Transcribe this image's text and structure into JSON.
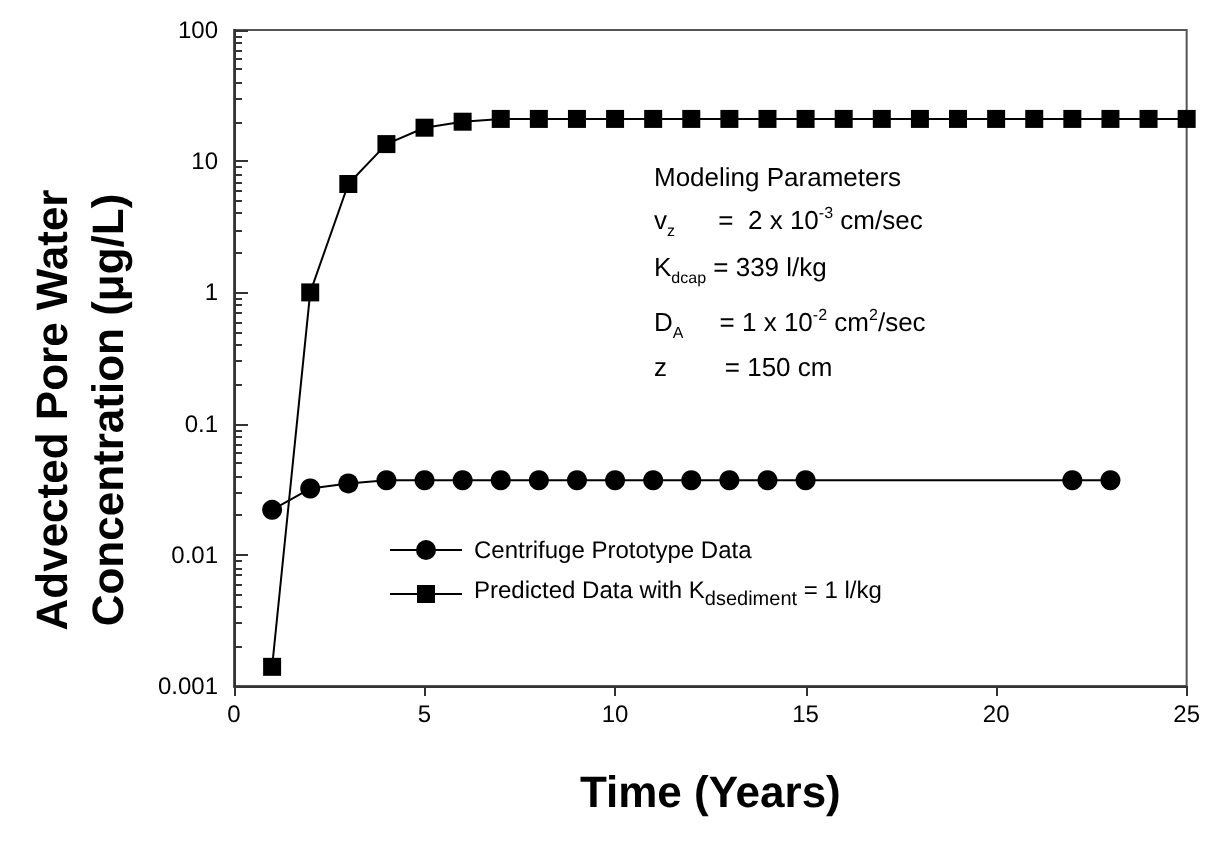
{
  "chart_data": {
    "type": "line",
    "xlabel": "Time (Years)",
    "ylabel": "Advected Pore Water\nConcentration (μg/L)",
    "xlim": [
      0,
      25
    ],
    "xticks": [
      0,
      5,
      10,
      15,
      20,
      25
    ],
    "ylim": [
      0.001,
      100
    ],
    "yticks": [
      0.001,
      0.01,
      0.1,
      1,
      10,
      100
    ],
    "log": "y",
    "grid": false,
    "legend": "bottom left",
    "line_style": "solid",
    "series": [
      {
        "name": "Centrifuge Prototype Data",
        "color": "#000000",
        "marker": "circle",
        "x": [
          1,
          2,
          3,
          4,
          5,
          6,
          7,
          8,
          9,
          10,
          11,
          12,
          13,
          14,
          15,
          22,
          23
        ],
        "values": [
          0.022,
          0.032,
          0.035,
          0.037,
          0.037,
          0.037,
          0.037,
          0.037,
          0.037,
          0.037,
          0.037,
          0.037,
          0.037,
          0.037,
          0.037,
          0.037,
          0.037
        ]
      },
      {
        "name": "Predicted Data with K$_{dsediment}$ = 1 l/kg",
        "color": "#000000",
        "marker": "square",
        "x": [
          1,
          2,
          3,
          4,
          5,
          6,
          7,
          8,
          9,
          10,
          11,
          12,
          13,
          14,
          15,
          16,
          17,
          18,
          19,
          20,
          21,
          22,
          23,
          24,
          25
        ],
        "values": [
          0.0014,
          1.0,
          6.7,
          13.5,
          18,
          20,
          21,
          21,
          21,
          21,
          21,
          21,
          21,
          21,
          21,
          21,
          21,
          21,
          21,
          21,
          21,
          21,
          21,
          21,
          21
        ]
      }
    ],
    "annotations": [
      "Modeling Parameters",
      "v$_{z}$      =  2 x 10$^{-3}$ cm/sec",
      "K$_{dcap}$ = 339 l/kg",
      "D$_{A}$     = 1 x 10$^{-2}$ cm$^{2}$/sec",
      "z        = 150 cm"
    ]
  }
}
